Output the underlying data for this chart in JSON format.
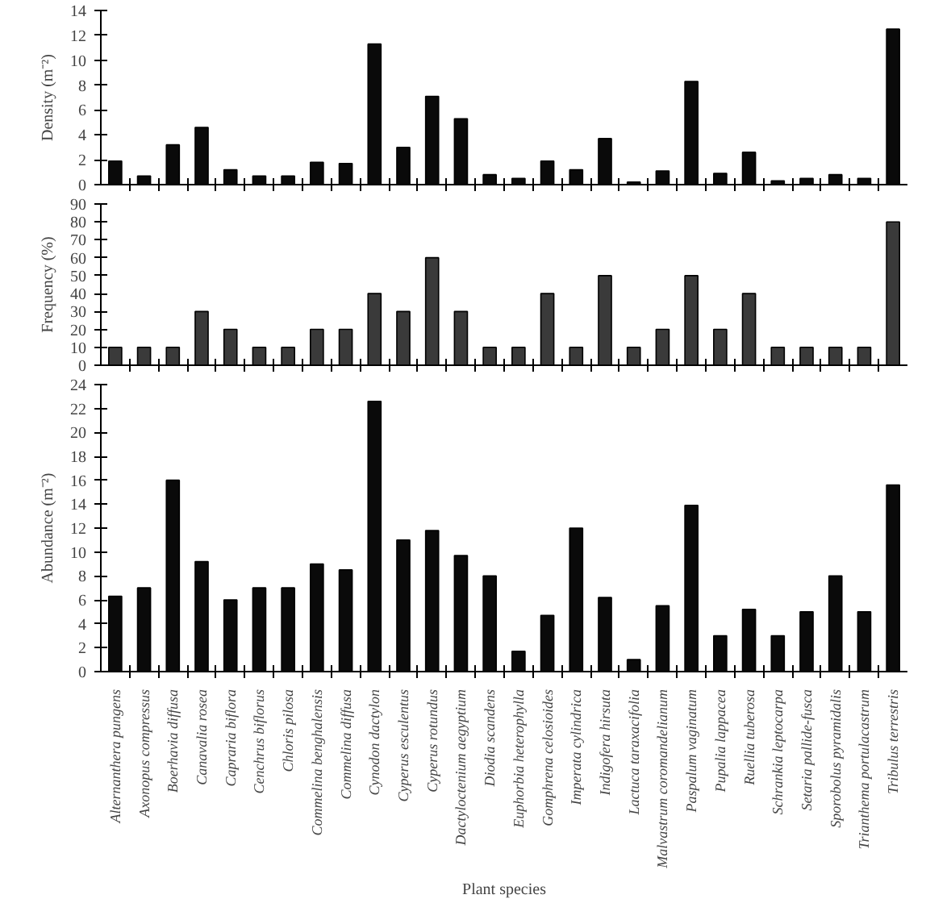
{
  "chart_data": [
    {
      "type": "bar",
      "ylabel": "Density (m⁻²)",
      "grid": false,
      "color": "#0a0a0a",
      "categories": [
        null,
        null,
        null,
        null,
        null,
        null,
        null,
        null,
        null,
        null,
        null,
        null,
        null,
        null,
        null,
        null,
        null,
        null,
        null,
        null,
        null,
        null,
        null,
        null,
        null,
        null,
        null,
        null
      ],
      "values": [
        1.9,
        0.7,
        3.2,
        4.6,
        1.2,
        0.7,
        0.7,
        1.8,
        1.7,
        11.3,
        3.0,
        7.1,
        5.3,
        0.8,
        0.5,
        1.9,
        1.2,
        3.7,
        0.2,
        1.1,
        8.3,
        0.9,
        2.6,
        0.3,
        0.5,
        0.8,
        0.5,
        12.5
      ],
      "ylim": [
        0,
        14
      ],
      "yticks": [
        0,
        2,
        4,
        6,
        8,
        10,
        12,
        14
      ]
    },
    {
      "type": "bar",
      "ylabel": "Frequency (%)",
      "grid": false,
      "color": "#3a3a3a",
      "categories": [
        null,
        null,
        null,
        null,
        null,
        null,
        null,
        null,
        null,
        null,
        null,
        null,
        null,
        null,
        null,
        null,
        null,
        null,
        null,
        null,
        null,
        null,
        null,
        null,
        null,
        null,
        null,
        null
      ],
      "values": [
        10,
        10,
        10,
        30,
        20,
        10,
        10,
        20,
        20,
        40,
        30,
        60,
        30,
        10,
        10,
        40,
        10,
        50,
        10,
        20,
        50,
        20,
        40,
        10,
        10,
        10,
        10,
        80
      ],
      "ylim": [
        0,
        90
      ],
      "yticks": [
        0,
        10,
        20,
        30,
        40,
        50,
        60,
        70,
        80,
        90
      ]
    },
    {
      "type": "bar",
      "ylabel": "Abundance (m⁻²)",
      "xlabel": "Plant species",
      "grid": false,
      "color": "#0a0a0a",
      "categories": [
        "Alternanthera pungens",
        "Axonopus compressus",
        "Boerhavia diffusa",
        "Canavalia rosea",
        "Capraria biflora",
        "Cenchrus biflorus",
        "Chloris pilosa",
        "Commelina benghalensis",
        "Commelina diffusa",
        "Cynodon dactylon",
        "Cyperus esculentus",
        "Cyperus rotundus",
        "Dactyloctenium aegyptium",
        "Diodia scandens",
        "Euphorbia heterophylla",
        "Gomphrena celosioides",
        "Imperata cylindrica",
        "Indigofera hirsuta",
        "Lactuca taraxacifolia",
        "Malvastrum coromandelianum",
        "Paspalum vaginatum",
        "Pupalia lappacea",
        "Ruellia tuberosa",
        "Schrankia leptocarpa",
        "Setaria pallide-fusca",
        "Sporobolus pyramidalis",
        "Trianthema portulacastrum",
        "Tribulus terrestris"
      ],
      "values": [
        6.3,
        7.0,
        16.0,
        9.2,
        6.0,
        7.0,
        7.0,
        9.0,
        8.5,
        22.6,
        11.0,
        11.8,
        9.7,
        8.0,
        1.7,
        4.7,
        12.0,
        6.2,
        1.0,
        5.5,
        13.9,
        3.0,
        5.2,
        3.0,
        5.0,
        8.0,
        5.0,
        15.6
      ],
      "ylim": [
        0,
        24
      ],
      "yticks": [
        0,
        2,
        4,
        6,
        8,
        10,
        12,
        14,
        16,
        18,
        20,
        22,
        24
      ]
    }
  ]
}
